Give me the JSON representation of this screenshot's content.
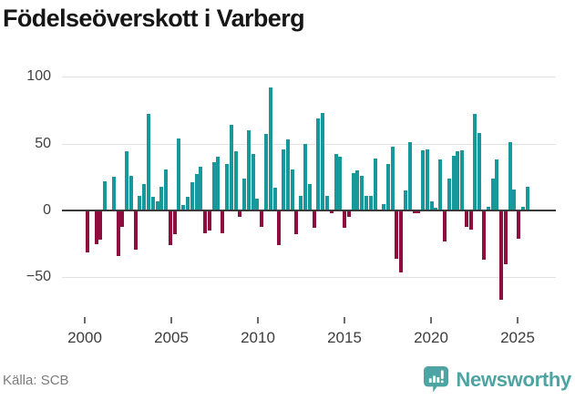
{
  "title": "Födelseöverskott i Varberg",
  "source": "Källa: SCB",
  "brand": {
    "name": "Newsworthy",
    "color": "#4da4a3"
  },
  "chart_data": {
    "type": "bar",
    "title": "Födelseöverskott i Varberg",
    "frequency": "quarterly",
    "start_period": "2000-Q1",
    "end_period": "2025-Q2",
    "values": [
      -31,
      0,
      -25,
      -22,
      22,
      0,
      25,
      -34,
      -12,
      44,
      26,
      -29,
      11,
      20,
      72,
      10,
      7,
      18,
      31,
      -26,
      -18,
      54,
      4,
      10,
      21,
      27,
      33,
      -17,
      -15,
      36,
      40,
      -17,
      35,
      64,
      44,
      -5,
      24,
      60,
      42,
      9,
      -12,
      57,
      92,
      17,
      -26,
      46,
      53,
      31,
      -18,
      11,
      50,
      20,
      -13,
      69,
      73,
      11,
      -2,
      42,
      40,
      -13,
      -5,
      28,
      30,
      26,
      11,
      11,
      39,
      0,
      5,
      35,
      48,
      -36,
      -46,
      15,
      51,
      -2,
      -2,
      45,
      46,
      7,
      2,
      38,
      -23,
      24,
      41,
      44,
      45,
      -12,
      -14,
      72,
      58,
      -37,
      3,
      24,
      38,
      -67,
      -40,
      51,
      16,
      -21,
      3,
      18
    ],
    "x_tick_labels": [
      "2000",
      "2005",
      "2010",
      "2015",
      "2020",
      "2025"
    ],
    "y_tick_labels": [
      "100",
      "50",
      "0",
      "−50"
    ],
    "y_tick_values": [
      100,
      50,
      0,
      -50
    ],
    "ylim": [
      -70,
      100
    ],
    "grid": "horizontal",
    "zero_line": true,
    "legend": "none",
    "bar_color_positive": "#17999b",
    "bar_color_negative": "#8e0d3e"
  }
}
